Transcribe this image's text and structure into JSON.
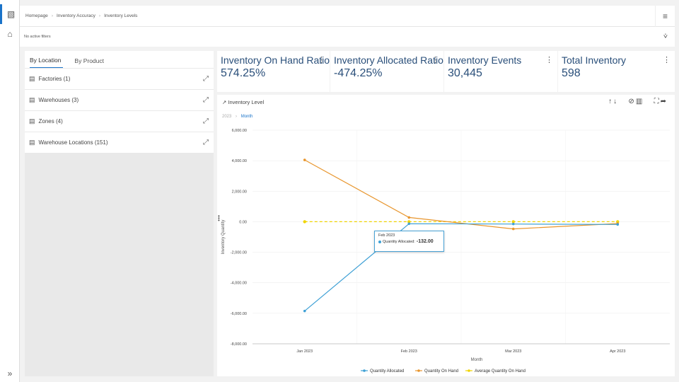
{
  "breadcrumb": [
    "Homepage",
    "Inventory Accuracy",
    "Inventory Levels"
  ],
  "filters": {
    "text": "No active filters"
  },
  "left_panel": {
    "tabs": [
      "By Location",
      "By Product"
    ],
    "items": [
      "Factories (1)",
      "Warehouses (3)",
      "Zones (4)",
      "Warehouse Locations (151)"
    ]
  },
  "kpis": [
    {
      "title": "Inventory On Hand Ratio",
      "value": "574.25%"
    },
    {
      "title": "Inventory Allocated Ratio",
      "value": "-474.25%"
    },
    {
      "title": "Inventory Events",
      "value": "30,445"
    },
    {
      "title": "Total Inventory",
      "value": "598"
    }
  ],
  "chart_panel": {
    "title": "Inventory Level",
    "drill": {
      "year": "2023",
      "level": "Month"
    }
  },
  "tooltip": {
    "date": "Feb 2023",
    "series_label": "Quantity Allocated:",
    "value": "-132.00"
  },
  "chart_data": {
    "type": "line",
    "title": "Inventory Level",
    "xlabel": "Month",
    "ylabel": "Inventory Quantity",
    "categories": [
      "Jan 2023",
      "Feb 2023",
      "Mar 2023",
      "Apr 2023"
    ],
    "ylim": [
      -8000,
      6000
    ],
    "yticks": [
      6000,
      4000,
      2000,
      0,
      -2000,
      -4000,
      -6000,
      -8000
    ],
    "ytick_labels": [
      "6,000.00",
      "4,000.00",
      "2,000.00",
      "0.00",
      "-2,000.00",
      "-4,000.00",
      "-6,000.00",
      "-8,000.00"
    ],
    "series": [
      {
        "name": "Quantity Allocated",
        "color": "#3ea0d5",
        "dashed": false,
        "values": [
          -5850,
          -132,
          -150,
          -180
        ]
      },
      {
        "name": "Quantity On Hand",
        "color": "#e8962e",
        "dashed": false,
        "values": [
          4050,
          280,
          -470,
          -120
        ]
      },
      {
        "name": "Average Quantity On Hand",
        "color": "#f0d400",
        "dashed": true,
        "values": [
          0,
          0,
          0,
          0
        ]
      }
    ],
    "legend": "bottom"
  }
}
